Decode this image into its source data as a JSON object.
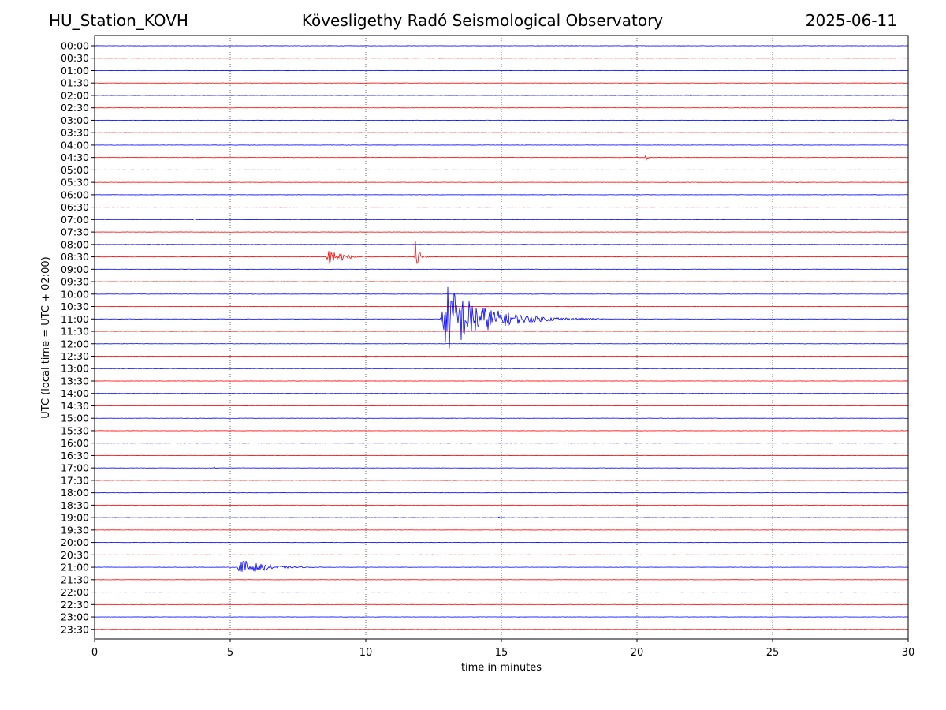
{
  "header": {
    "station": "HU_Station_KOVH",
    "title": "Kövesligethy Radó Seismological Observatory",
    "date": "2025-06-11"
  },
  "chart_data": {
    "type": "line",
    "title": "Kövesligethy Radó Seismological Observatory",
    "xlabel": "time in minutes",
    "ylabel": "UTC (local time = UTC + 02:00)",
    "xlim": [
      0,
      30
    ],
    "xticks": [
      0,
      5,
      10,
      15,
      20,
      25,
      30
    ],
    "grid": "vertical dotted at 5-minute ticks",
    "row_interval_minutes": 30,
    "row_labels": [
      "00:00",
      "00:30",
      "01:00",
      "01:30",
      "02:00",
      "02:30",
      "03:00",
      "03:30",
      "04:00",
      "04:30",
      "05:00",
      "05:30",
      "06:00",
      "06:30",
      "07:00",
      "07:30",
      "08:00",
      "08:30",
      "09:00",
      "09:30",
      "10:00",
      "10:30",
      "11:00",
      "11:30",
      "12:00",
      "12:30",
      "13:00",
      "13:30",
      "14:00",
      "14:30",
      "15:00",
      "15:30",
      "16:00",
      "16:30",
      "17:00",
      "17:30",
      "18:00",
      "18:30",
      "19:00",
      "19:30",
      "20:00",
      "20:30",
      "21:00",
      "21:30",
      "22:00",
      "22:30",
      "23:00",
      "23:30"
    ],
    "colors": [
      "#0000ff",
      "#ff0000"
    ],
    "events": [
      {
        "row": "02:00",
        "start_min": 21.8,
        "end_min": 22.4,
        "amplitude": 0.3
      },
      {
        "row": "03:00",
        "start_min": 29.3,
        "end_min": 29.8,
        "amplitude": 0.25
      },
      {
        "row": "04:30",
        "start_min": 20.3,
        "end_min": 20.9,
        "amplitude": 0.45
      },
      {
        "row": "07:00",
        "start_min": 3.6,
        "end_min": 4.2,
        "amplitude": 0.3
      },
      {
        "row": "08:30",
        "start_min": 8.55,
        "end_min": 10.5,
        "amplitude": 1.8
      },
      {
        "row": "08:30",
        "start_min": 11.8,
        "end_min": 12.4,
        "amplitude": 2.7
      },
      {
        "row": "11:00",
        "start_min": 12.75,
        "end_min": 18.8,
        "amplitude": 5.6
      },
      {
        "row": "17:00",
        "start_min": 4.4,
        "end_min": 4.7,
        "amplitude": 0.2
      },
      {
        "row": "19:00",
        "start_min": 8.3,
        "end_min": 8.6,
        "amplitude": 0.2
      },
      {
        "row": "19:00",
        "start_min": 14.9,
        "end_min": 15.2,
        "amplitude": 0.2
      },
      {
        "row": "21:00",
        "start_min": 5.25,
        "end_min": 9.0,
        "amplitude": 1.3
      },
      {
        "row": "23:30",
        "start_min": 25.5,
        "end_min": 26.2,
        "amplitude": 0.15
      }
    ]
  }
}
